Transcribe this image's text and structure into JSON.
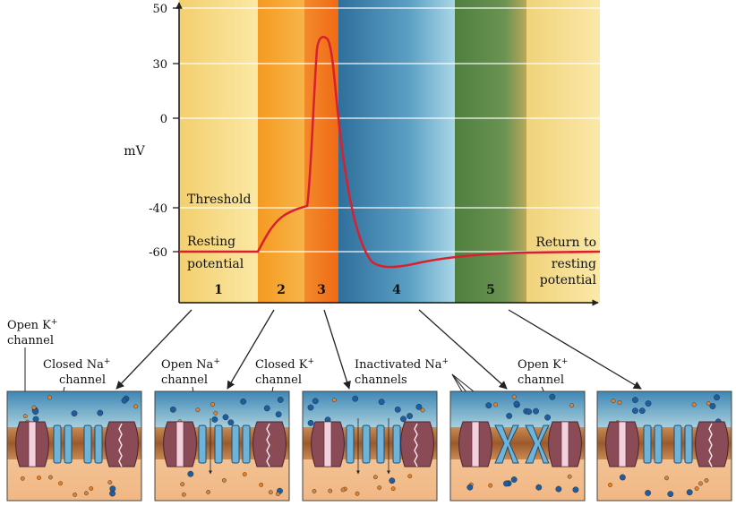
{
  "chart": {
    "ylabel": "mV",
    "yticks": [
      50,
      30,
      0,
      -40,
      -60
    ],
    "ylim": [
      -70,
      52
    ],
    "labels": {
      "threshold": "Threshold",
      "resting_1": "Resting",
      "resting_2": "potential",
      "return_1": "Return to",
      "return_2": "resting",
      "return_3": "potential"
    },
    "phases": [
      {
        "number": "1",
        "color": "#f7d77a"
      },
      {
        "number": "2",
        "color": "#f5a631"
      },
      {
        "number": "3",
        "color": "#f07a1e"
      },
      {
        "number": "4",
        "color": "#3a7ea8"
      },
      {
        "number": "5",
        "color": "#5d8c4a"
      }
    ],
    "curve_color": "#d8202e"
  },
  "chart_data": {
    "type": "line",
    "ylabel": "mV",
    "ylim": [
      -70,
      52
    ],
    "series": [
      {
        "name": "",
        "values": [
          -60,
          -60,
          -52,
          -44,
          -41,
          -40,
          -20,
          30,
          41,
          38,
          0,
          -40,
          -64,
          -67,
          -65,
          -62,
          -60,
          -60
        ]
      }
    ]
  },
  "panels": {
    "labels": {
      "p1_open_k_1": "Open K",
      "p1_open_k_2": "channel",
      "p1_closed_na_1": "Closed Na",
      "p1_closed_na_2": "channel",
      "p2_open_na_1": "Open Na",
      "p2_open_na_2": "channel",
      "p2_closed_k_1": "Closed K",
      "p2_closed_k_2": "channel",
      "p3_inact_na_1": "Inactivated Na",
      "p3_inact_na_2": "channels",
      "p4_open_k_1": "Open K",
      "p4_open_k_2": "channel",
      "plus": "+"
    },
    "colors": {
      "extracellular": "#5f9fc4",
      "membrane": "#b8703a",
      "intracellular": "#f3c79c",
      "k_channel": "#8a4a56",
      "na_channel": "#6fb3d9",
      "na_ion": "#1f5d9c",
      "k_ion": "#e0822e"
    }
  }
}
